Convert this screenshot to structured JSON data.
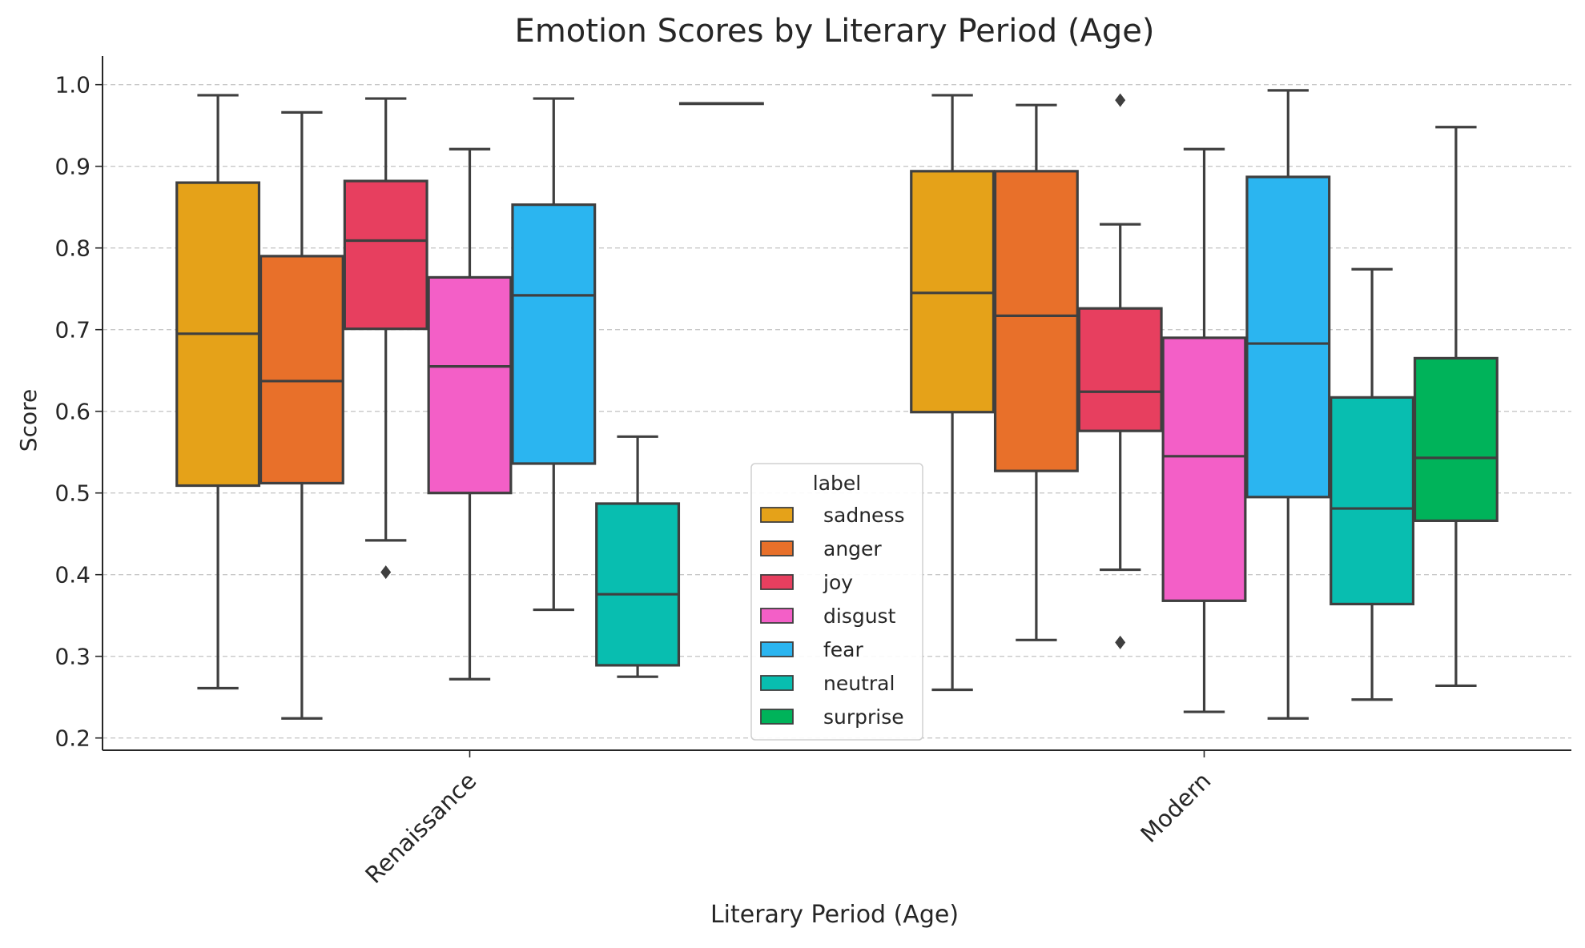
{
  "chart_data": {
    "type": "box",
    "title": "Emotion Scores by Literary Period (Age)",
    "xlabel": "Literary Period (Age)",
    "ylabel": "Score",
    "ylim": [
      0.185,
      1.035
    ],
    "yticks": [
      "0.2",
      "0.3",
      "0.4",
      "0.5",
      "0.6",
      "0.7",
      "0.8",
      "0.9",
      "1.0"
    ],
    "grid": "horizontal dashed",
    "legend": {
      "title": "label",
      "placement": "lower-center"
    },
    "categories": [
      "Renaissance",
      "Modern"
    ],
    "series": [
      {
        "name": "sadness",
        "color": "#E5A219",
        "boxes": [
          {
            "whislo": 0.261,
            "q1": 0.509,
            "med": 0.695,
            "q3": 0.88,
            "whishi": 0.987,
            "fliers": []
          },
          {
            "whislo": 0.259,
            "q1": 0.599,
            "med": 0.745,
            "q3": 0.894,
            "whishi": 0.987,
            "fliers": []
          }
        ]
      },
      {
        "name": "anger",
        "color": "#E8702A",
        "boxes": [
          {
            "whislo": 0.224,
            "q1": 0.512,
            "med": 0.637,
            "q3": 0.79,
            "whishi": 0.966,
            "fliers": []
          },
          {
            "whislo": 0.32,
            "q1": 0.527,
            "med": 0.717,
            "q3": 0.894,
            "whishi": 0.975,
            "fliers": []
          }
        ]
      },
      {
        "name": "joy",
        "color": "#E73F5F",
        "boxes": [
          {
            "whislo": 0.442,
            "q1": 0.701,
            "med": 0.809,
            "q3": 0.882,
            "whishi": 0.983,
            "fliers": [
              0.403
            ]
          },
          {
            "whislo": 0.406,
            "q1": 0.576,
            "med": 0.624,
            "q3": 0.726,
            "whishi": 0.829,
            "fliers": [
              0.981,
              0.317
            ]
          }
        ]
      },
      {
        "name": "disgust",
        "color": "#F35FC7",
        "boxes": [
          {
            "whislo": 0.272,
            "q1": 0.5,
            "med": 0.655,
            "q3": 0.764,
            "whishi": 0.921,
            "fliers": []
          },
          {
            "whislo": 0.232,
            "q1": 0.368,
            "med": 0.545,
            "q3": 0.69,
            "whishi": 0.921,
            "fliers": []
          }
        ]
      },
      {
        "name": "fear",
        "color": "#2BB5F0",
        "boxes": [
          {
            "whislo": 0.357,
            "q1": 0.536,
            "med": 0.742,
            "q3": 0.853,
            "whishi": 0.983,
            "fliers": []
          },
          {
            "whislo": 0.224,
            "q1": 0.495,
            "med": 0.683,
            "q3": 0.887,
            "whishi": 0.993,
            "fliers": []
          }
        ]
      },
      {
        "name": "neutral",
        "color": "#08BEB0",
        "boxes": [
          {
            "whislo": 0.275,
            "q1": 0.289,
            "med": 0.376,
            "q3": 0.487,
            "whishi": 0.569,
            "fliers": []
          },
          {
            "whislo": 0.247,
            "q1": 0.364,
            "med": 0.481,
            "q3": 0.617,
            "whishi": 0.774,
            "fliers": []
          }
        ]
      },
      {
        "name": "surprise",
        "color": "#00B35A",
        "boxes": [
          {
            "whislo": 0.977,
            "q1": 0.977,
            "med": 0.977,
            "q3": 0.977,
            "whishi": 0.977,
            "fliers": []
          },
          {
            "whislo": 0.264,
            "q1": 0.466,
            "med": 0.543,
            "q3": 0.665,
            "whishi": 0.948,
            "fliers": []
          }
        ]
      }
    ]
  }
}
